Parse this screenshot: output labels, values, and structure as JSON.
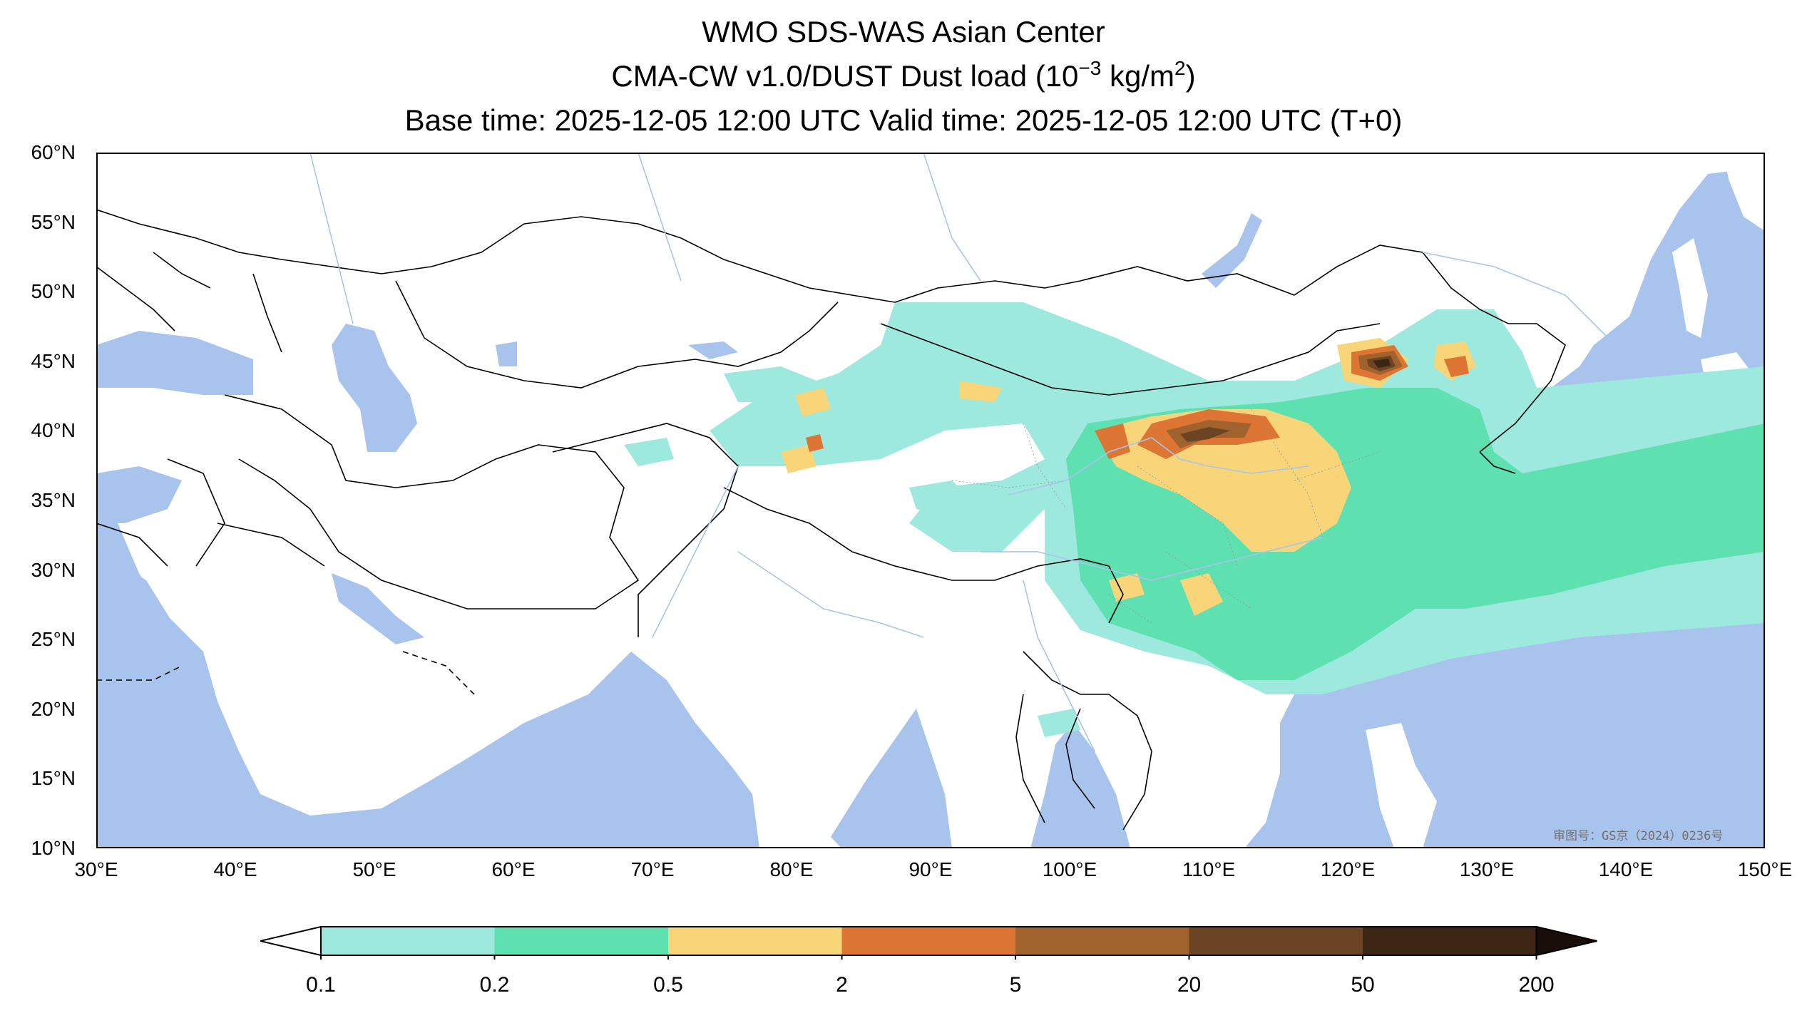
{
  "title": {
    "line1": "WMO SDS-WAS Asian Center",
    "line2_prefix": "CMA-CW v1.0/DUST Dust load (10",
    "line2_exp1": "−3",
    "line2_mid": " kg/m",
    "line2_exp2": "2",
    "line2_suffix": ")",
    "line3": "Base time: 2025-12-05 12:00 UTC Valid time: 2025-12-05 12:00 UTC (T+0)"
  },
  "map": {
    "lon_range": [
      30,
      150
    ],
    "lat_range": [
      10,
      60
    ],
    "ocean_color": "#a9c4ec",
    "land_color": "#ffffff",
    "border_color": "#000000",
    "river_color": "#a9c4ec",
    "x_ticks": [
      {
        "value": 30,
        "label": "30°E"
      },
      {
        "value": 40,
        "label": "40°E"
      },
      {
        "value": 50,
        "label": "50°E"
      },
      {
        "value": 60,
        "label": "60°E"
      },
      {
        "value": 70,
        "label": "70°E"
      },
      {
        "value": 80,
        "label": "80°E"
      },
      {
        "value": 90,
        "label": "90°E"
      },
      {
        "value": 100,
        "label": "100°E"
      },
      {
        "value": 110,
        "label": "110°E"
      },
      {
        "value": 120,
        "label": "120°E"
      },
      {
        "value": 130,
        "label": "130°E"
      },
      {
        "value": 140,
        "label": "140°E"
      },
      {
        "value": 150,
        "label": "150°E"
      }
    ],
    "y_ticks": [
      {
        "value": 60,
        "label": "60°N"
      },
      {
        "value": 55,
        "label": "55°N"
      },
      {
        "value": 50,
        "label": "50°N"
      },
      {
        "value": 45,
        "label": "45°N"
      },
      {
        "value": 40,
        "label": "40°N"
      },
      {
        "value": 35,
        "label": "35°N"
      },
      {
        "value": 30,
        "label": "30°N"
      },
      {
        "value": 25,
        "label": "25°N"
      },
      {
        "value": 20,
        "label": "20°N"
      },
      {
        "value": 15,
        "label": "15°N"
      },
      {
        "value": 10,
        "label": "10°N"
      }
    ],
    "watermark": "审图号：GS京（2024）0236号"
  },
  "colorbar": {
    "levels": [
      "0.1",
      "0.2",
      "0.5",
      "2",
      "5",
      "20",
      "50",
      "200"
    ],
    "colors": [
      "#9ee9de",
      "#5fe0b1",
      "#f9d57a",
      "#dd7535",
      "#a0632e",
      "#6a4423",
      "#3d2615"
    ],
    "under_color": "#ffffff",
    "over_color": "#1a0f08"
  }
}
